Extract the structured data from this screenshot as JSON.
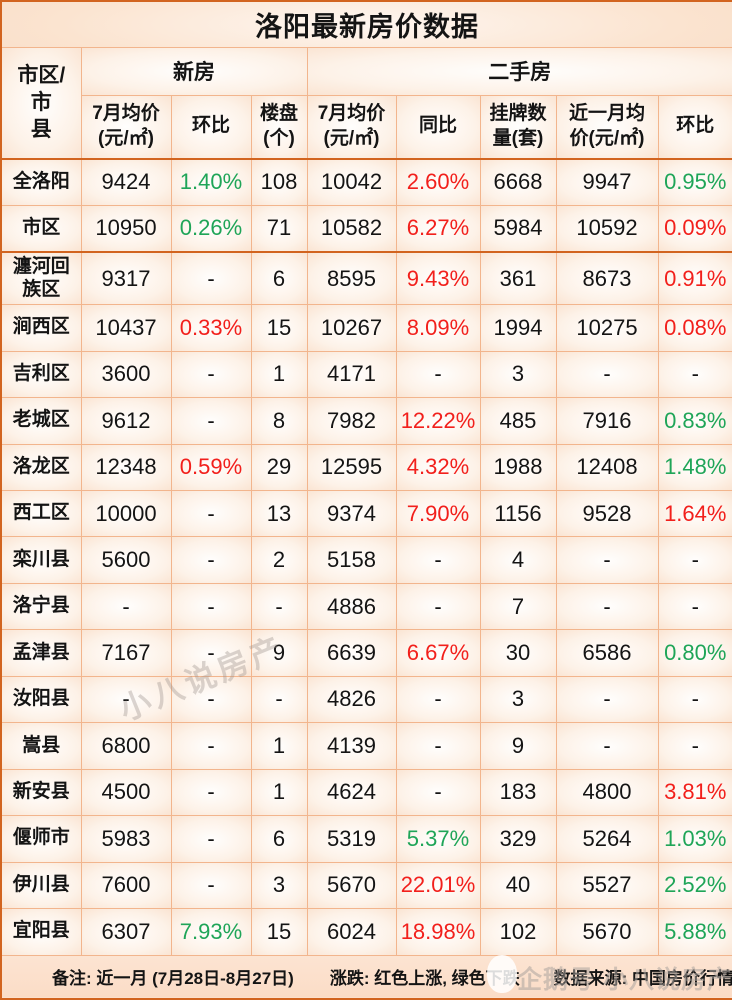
{
  "colors": {
    "up_red": "#f2201c",
    "down_green": "#1fa558",
    "border_light": "#f2b58d",
    "border_dark": "#d2641f",
    "background_peach": "#fbdcc6",
    "text": "#141414"
  },
  "chart_data": {
    "type": "table",
    "title": "洛阳最新房价数据",
    "corner_header": "市区/市\n县",
    "column_groups": [
      {
        "label": "新房",
        "span": 3
      },
      {
        "label": "二手房",
        "span": 5
      }
    ],
    "columns": [
      "7月均价\n(元/㎡)",
      "环比",
      "楼盘\n(个)",
      "7月均价\n(元/㎡)",
      "同比",
      "挂牌数\n量(套)",
      "近一月均\n价(元/㎡)",
      "环比"
    ],
    "legend_note": "红色上涨, 绿色下跌",
    "rows": [
      {
        "name": "全洛阳",
        "highlight": true,
        "cells": [
          {
            "v": "9424"
          },
          {
            "v": "1.40%",
            "c": "green"
          },
          {
            "v": "108"
          },
          {
            "v": "10042"
          },
          {
            "v": "2.60%",
            "c": "red"
          },
          {
            "v": "6668"
          },
          {
            "v": "9947"
          },
          {
            "v": "0.95%",
            "c": "green"
          }
        ]
      },
      {
        "name": "市区",
        "highlight": true,
        "cells": [
          {
            "v": "10950"
          },
          {
            "v": "0.26%",
            "c": "green"
          },
          {
            "v": "71"
          },
          {
            "v": "10582"
          },
          {
            "v": "6.27%",
            "c": "red"
          },
          {
            "v": "5984"
          },
          {
            "v": "10592"
          },
          {
            "v": "0.09%",
            "c": "red"
          }
        ]
      },
      {
        "name": "瀍河回族区",
        "highlight": false,
        "cells": [
          {
            "v": "9317"
          },
          {
            "v": "-"
          },
          {
            "v": "6"
          },
          {
            "v": "8595"
          },
          {
            "v": "9.43%",
            "c": "red"
          },
          {
            "v": "361"
          },
          {
            "v": "8673"
          },
          {
            "v": "0.91%",
            "c": "red"
          }
        ]
      },
      {
        "name": "涧西区",
        "highlight": false,
        "cells": [
          {
            "v": "10437"
          },
          {
            "v": "0.33%",
            "c": "red"
          },
          {
            "v": "15"
          },
          {
            "v": "10267"
          },
          {
            "v": "8.09%",
            "c": "red"
          },
          {
            "v": "1994"
          },
          {
            "v": "10275"
          },
          {
            "v": "0.08%",
            "c": "red"
          }
        ]
      },
      {
        "name": "吉利区",
        "highlight": false,
        "cells": [
          {
            "v": "3600"
          },
          {
            "v": "-"
          },
          {
            "v": "1"
          },
          {
            "v": "4171"
          },
          {
            "v": "-"
          },
          {
            "v": "3"
          },
          {
            "v": "-"
          },
          {
            "v": "-"
          }
        ]
      },
      {
        "name": "老城区",
        "highlight": false,
        "cells": [
          {
            "v": "9612"
          },
          {
            "v": "-"
          },
          {
            "v": "8"
          },
          {
            "v": "7982"
          },
          {
            "v": "12.22%",
            "c": "red"
          },
          {
            "v": "485"
          },
          {
            "v": "7916"
          },
          {
            "v": "0.83%",
            "c": "green"
          }
        ]
      },
      {
        "name": "洛龙区",
        "highlight": false,
        "cells": [
          {
            "v": "12348"
          },
          {
            "v": "0.59%",
            "c": "red"
          },
          {
            "v": "29"
          },
          {
            "v": "12595"
          },
          {
            "v": "4.32%",
            "c": "red"
          },
          {
            "v": "1988"
          },
          {
            "v": "12408"
          },
          {
            "v": "1.48%",
            "c": "green"
          }
        ]
      },
      {
        "name": "西工区",
        "highlight": false,
        "cells": [
          {
            "v": "10000"
          },
          {
            "v": "-"
          },
          {
            "v": "13"
          },
          {
            "v": "9374"
          },
          {
            "v": "7.90%",
            "c": "red"
          },
          {
            "v": "1156"
          },
          {
            "v": "9528"
          },
          {
            "v": "1.64%",
            "c": "red"
          }
        ]
      },
      {
        "name": "栾川县",
        "highlight": false,
        "cells": [
          {
            "v": "5600"
          },
          {
            "v": "-"
          },
          {
            "v": "2"
          },
          {
            "v": "5158"
          },
          {
            "v": "-"
          },
          {
            "v": "4"
          },
          {
            "v": "-"
          },
          {
            "v": "-"
          }
        ]
      },
      {
        "name": "洛宁县",
        "highlight": false,
        "cells": [
          {
            "v": "-"
          },
          {
            "v": "-"
          },
          {
            "v": "-"
          },
          {
            "v": "4886"
          },
          {
            "v": "-"
          },
          {
            "v": "7"
          },
          {
            "v": "-"
          },
          {
            "v": "-"
          }
        ]
      },
      {
        "name": "孟津县",
        "highlight": false,
        "cells": [
          {
            "v": "7167"
          },
          {
            "v": "-"
          },
          {
            "v": "9"
          },
          {
            "v": "6639"
          },
          {
            "v": "6.67%",
            "c": "red"
          },
          {
            "v": "30"
          },
          {
            "v": "6586"
          },
          {
            "v": "0.80%",
            "c": "green"
          }
        ]
      },
      {
        "name": "汝阳县",
        "highlight": false,
        "cells": [
          {
            "v": "-"
          },
          {
            "v": "-"
          },
          {
            "v": "-"
          },
          {
            "v": "4826"
          },
          {
            "v": "-"
          },
          {
            "v": "3"
          },
          {
            "v": "-"
          },
          {
            "v": "-"
          }
        ]
      },
      {
        "name": "嵩县",
        "highlight": false,
        "cells": [
          {
            "v": "6800"
          },
          {
            "v": "-"
          },
          {
            "v": "1"
          },
          {
            "v": "4139"
          },
          {
            "v": "-"
          },
          {
            "v": "9"
          },
          {
            "v": "-"
          },
          {
            "v": "-"
          }
        ]
      },
      {
        "name": "新安县",
        "highlight": false,
        "cells": [
          {
            "v": "4500"
          },
          {
            "v": "-"
          },
          {
            "v": "1"
          },
          {
            "v": "4624"
          },
          {
            "v": "-"
          },
          {
            "v": "183"
          },
          {
            "v": "4800"
          },
          {
            "v": "3.81%",
            "c": "red"
          }
        ]
      },
      {
        "name": "偃师市",
        "highlight": false,
        "cells": [
          {
            "v": "5983"
          },
          {
            "v": "-"
          },
          {
            "v": "6"
          },
          {
            "v": "5319"
          },
          {
            "v": "5.37%",
            "c": "green"
          },
          {
            "v": "329"
          },
          {
            "v": "5264"
          },
          {
            "v": "1.03%",
            "c": "green"
          }
        ]
      },
      {
        "name": "伊川县",
        "highlight": false,
        "cells": [
          {
            "v": "7600"
          },
          {
            "v": "-"
          },
          {
            "v": "3"
          },
          {
            "v": "5670"
          },
          {
            "v": "22.01%",
            "c": "red"
          },
          {
            "v": "40"
          },
          {
            "v": "5527"
          },
          {
            "v": "2.52%",
            "c": "green"
          }
        ]
      },
      {
        "name": "宜阳县",
        "highlight": false,
        "cells": [
          {
            "v": "6307"
          },
          {
            "v": "7.93%",
            "c": "green"
          },
          {
            "v": "15"
          },
          {
            "v": "6024"
          },
          {
            "v": "18.98%",
            "c": "red"
          },
          {
            "v": "102"
          },
          {
            "v": "5670"
          },
          {
            "v": "5.88%",
            "c": "green"
          }
        ]
      }
    ]
  },
  "footer": {
    "note": "备注: 近一月 (7月28日-8月27日)",
    "legend": "涨跌: 红色上涨, 绿色下跌",
    "source": "数据来源: 中国房价行情"
  },
  "watermarks": {
    "diagonal": "小八说房产",
    "footer": "企鹅号 小八说房产"
  }
}
